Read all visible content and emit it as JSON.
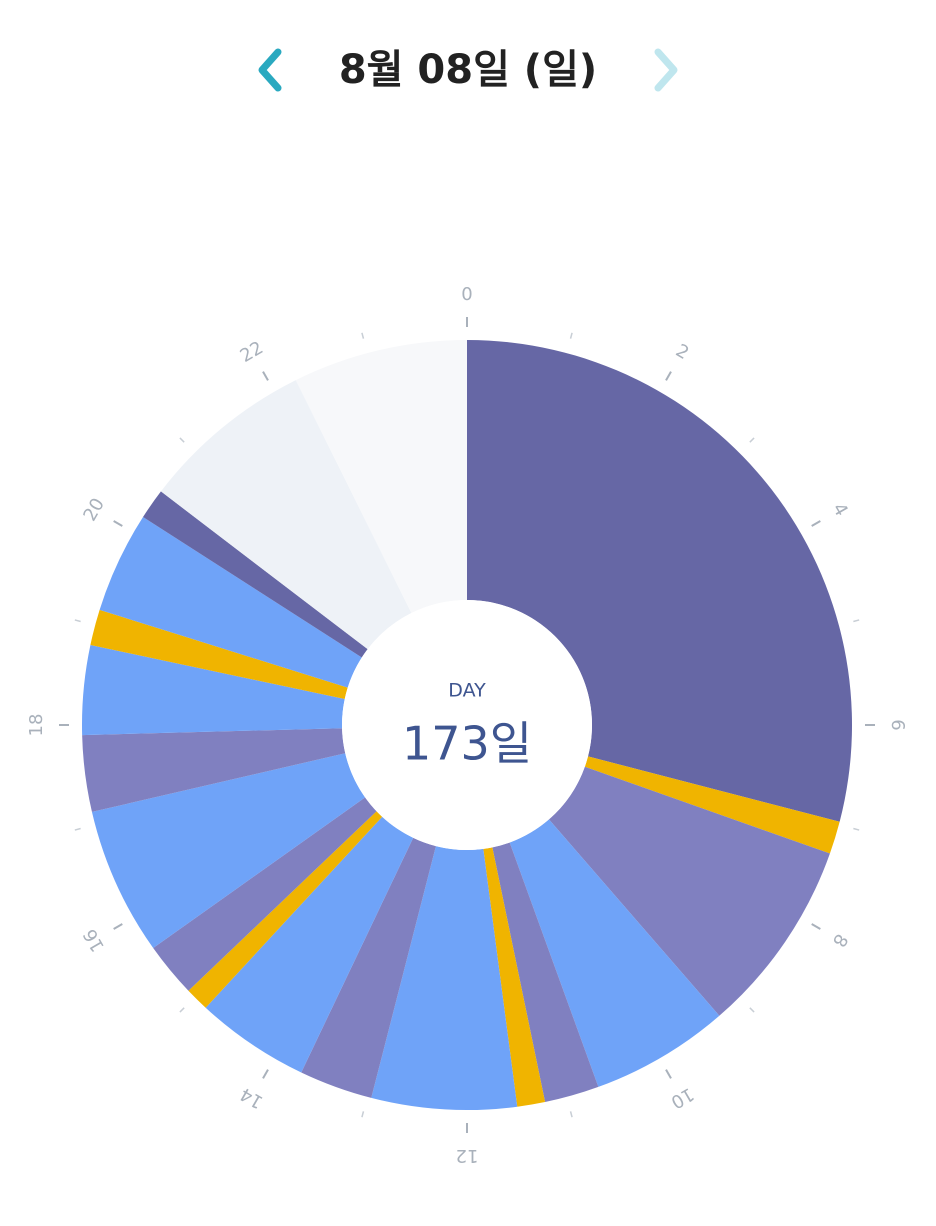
{
  "header": {
    "title": "8월 08일 (일)"
  },
  "chart_data": {
    "type": "clock",
    "center_label": "DAY",
    "center_value": "173일",
    "xlim": [
      0,
      24
    ],
    "ticks": [
      0,
      2,
      4,
      6,
      8,
      10,
      12,
      14,
      16,
      18,
      20,
      22
    ],
    "minor_ticks": [
      1,
      3,
      5,
      7,
      9,
      11,
      13,
      15,
      17,
      19,
      21,
      23
    ],
    "segments": [
      {
        "start": 0,
        "end": 6.97,
        "color": "#6667a5"
      },
      {
        "start": 6.97,
        "end": 7.3,
        "color": "#f0b400"
      },
      {
        "start": 7.3,
        "end": 9.27,
        "color": "#8080c0"
      },
      {
        "start": 9.27,
        "end": 10.67,
        "color": "#6fa3f8"
      },
      {
        "start": 10.67,
        "end": 11.22,
        "color": "#8080c0"
      },
      {
        "start": 11.22,
        "end": 11.5,
        "color": "#f0b400"
      },
      {
        "start": 11.5,
        "end": 12.96,
        "color": "#6fa3f8"
      },
      {
        "start": 12.96,
        "end": 13.7,
        "color": "#8080c0"
      },
      {
        "start": 13.7,
        "end": 14.85,
        "color": "#6fa3f8"
      },
      {
        "start": 14.85,
        "end": 15.09,
        "color": "#f0b400"
      },
      {
        "start": 15.09,
        "end": 15.64,
        "color": "#8080c0"
      },
      {
        "start": 15.64,
        "end": 17.13,
        "color": "#6fa3f8"
      },
      {
        "start": 17.13,
        "end": 17.9,
        "color": "#8080c0"
      },
      {
        "start": 17.9,
        "end": 18.8,
        "color": "#6fa3f8"
      },
      {
        "start": 18.8,
        "end": 19.16,
        "color": "#f0b400"
      },
      {
        "start": 19.16,
        "end": 20.18,
        "color": "#6fa3f8"
      },
      {
        "start": 20.18,
        "end": 20.49,
        "color": "#6667a5"
      },
      {
        "start": 20.49,
        "end": 22.24,
        "color": "#eef2f7"
      },
      {
        "start": 22.24,
        "end": 24,
        "color": "#f7f8fa"
      }
    ]
  }
}
